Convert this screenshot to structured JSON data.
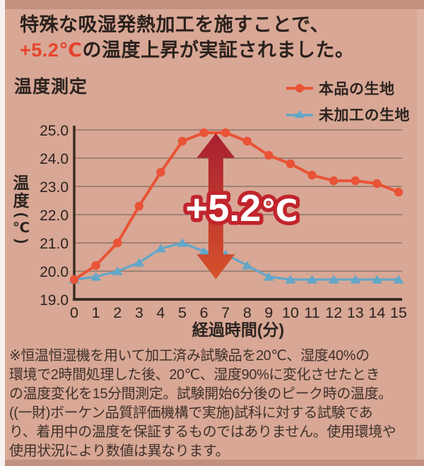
{
  "header": {
    "line1": "特殊な吸湿発熱加工を施すことで、",
    "line2_accent": "+5.2℃",
    "line2_rest": "の温度上昇が実証されました。",
    "accent_color": "#e6432c"
  },
  "chart_data": {
    "type": "line",
    "title": "温度測定",
    "xlabel": "経過時間(分)",
    "ylabel": "温度(℃)",
    "x": [
      0,
      1,
      2,
      3,
      4,
      5,
      6,
      7,
      8,
      9,
      10,
      11,
      12,
      13,
      14,
      15
    ],
    "ylim": [
      19.0,
      25.0
    ],
    "ytick_labels": [
      "25.0",
      "24.0",
      "23.0",
      "22.0",
      "21.0",
      "20.0",
      "19.0"
    ],
    "grid": true,
    "legend_position": "top-right",
    "colors": {
      "background": "#d8a795",
      "gridline": "#8d7669",
      "axis": "#3a2e26",
      "text": "#2c2420"
    },
    "series": [
      {
        "name": "本品の生地",
        "color": "#e95336",
        "marker": "circle",
        "values": [
          19.7,
          20.2,
          21.0,
          22.3,
          23.5,
          24.6,
          24.9,
          24.9,
          24.6,
          24.1,
          23.8,
          23.4,
          23.2,
          23.2,
          23.1,
          22.8
        ]
      },
      {
        "name": "未加工の生地",
        "color": "#61a7c9",
        "marker": "triangle",
        "values": [
          19.7,
          19.8,
          20.0,
          20.3,
          20.8,
          21.0,
          20.7,
          20.6,
          20.2,
          19.8,
          19.7,
          19.7,
          19.7,
          19.7,
          19.7,
          19.7
        ]
      }
    ],
    "annotation": {
      "label": "+5.2℃",
      "x": 6.55,
      "from": 19.72,
      "to": 24.88,
      "arrow_color_top": "#a81f30",
      "arrow_color_bottom": "#d5512b",
      "label_fill": "#ffffff",
      "label_stroke": "#c1242c"
    }
  },
  "footnote": "※恒温恒湿機を用いて加工済み試験品を20℃、湿度40%の\n環境で2時間処理した後、20℃、湿度90%に変化させたとき\nの温度変化を15分間測定。試験開始6分後のピーク時の温度。\n((一財)ボーケン品質評価機構で実施)試科に対する試験であ\nり、着用中の温度を保証するものではありません。使用環境や\n使用状況により数値は異なります。"
}
